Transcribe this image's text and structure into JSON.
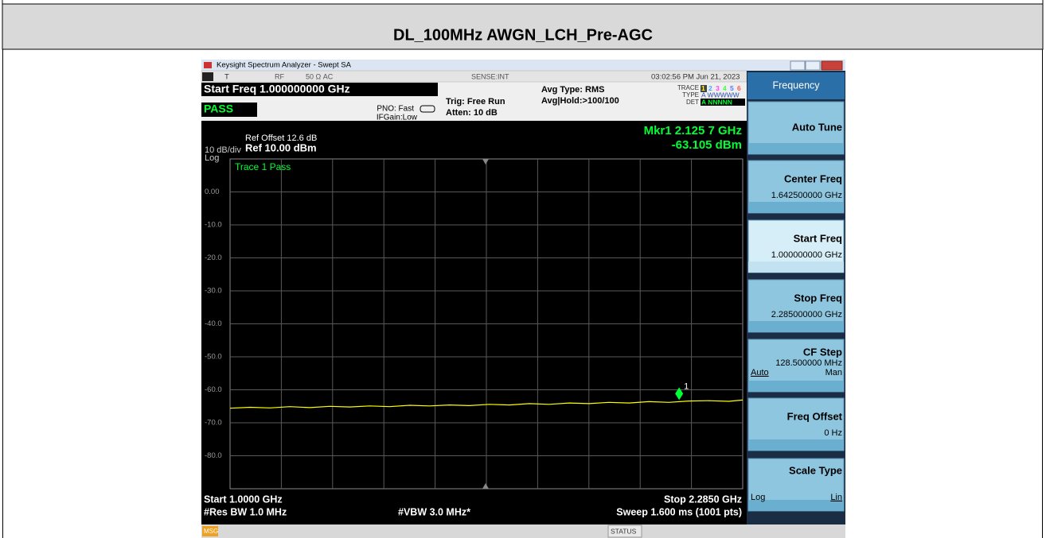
{
  "document": {
    "title": "DL_100MHz AWGN_LCH_Pre-AGC"
  },
  "window": {
    "title": "Keysight Spectrum Analyzer - Swept SA"
  },
  "status": {
    "trig_indicator": "T",
    "input": "RF",
    "impedance": "50 Ω  AC",
    "sense": "SENSE:INT",
    "datetime": "03:02:56 PM Jun 21, 2023"
  },
  "settings": {
    "start_freq": "Start Freq 1.000000000 GHz",
    "pass": "PASS",
    "pno": "PNO: Fast",
    "ifgain": "IFGain:Low",
    "trig": "Trig: Free Run",
    "atten": "Atten: 10 dB",
    "avg_type": "Avg Type: RMS",
    "avg_hold": "Avg|Hold:>100/100",
    "trace_label": "TRACE",
    "trace_digits": [
      "1",
      "2",
      "3",
      "4",
      "5",
      "6"
    ],
    "trace_colors": [
      "#ffff00",
      "#3fa9f5",
      "#ff44ff",
      "#44ff44",
      "#4f7cff",
      "#ff5555"
    ],
    "type_label": "TYPE",
    "type_value": "A WWWWW",
    "det_label": "DET",
    "det_value": "A NNNNN"
  },
  "display": {
    "ref_offset": "Ref Offset 12.6 dB",
    "scale": "10 dB/div",
    "ref_level": "Ref 10.00 dBm",
    "scale_type": "Log",
    "trace_status": "Trace 1 Pass",
    "start": "Start 1.0000 GHz",
    "stop": "Stop 2.2850 GHz",
    "rbw": "#Res BW 1.0 MHz",
    "vbw": "#VBW 3.0 MHz*",
    "sweep": "Sweep  1.600 ms (1001 pts)"
  },
  "chart_data": {
    "type": "line",
    "color": "#ffff00",
    "x": [
      1.0,
      1.05,
      1.1,
      1.15,
      1.2,
      1.25,
      1.3,
      1.35,
      1.4,
      1.45,
      1.5,
      1.55,
      1.6,
      1.65,
      1.7,
      1.75,
      1.8,
      1.85,
      1.9,
      1.95,
      2.0,
      2.05,
      2.1,
      2.15,
      2.2,
      2.25,
      2.285
    ],
    "values": [
      -65.6,
      -65.3,
      -65.5,
      -65.1,
      -65.4,
      -65.0,
      -65.2,
      -64.9,
      -65.1,
      -64.7,
      -64.9,
      -64.6,
      -64.8,
      -64.4,
      -64.6,
      -64.2,
      -64.4,
      -64.0,
      -64.2,
      -63.8,
      -64.0,
      -63.6,
      -63.8,
      -63.4,
      -63.3,
      -63.5,
      -63.1
    ],
    "xlim": [
      1.0,
      2.285
    ],
    "ylim": [
      -90,
      10
    ],
    "yticks": [
      {
        "value": 0,
        "label": "0.00"
      },
      {
        "value": -10,
        "label": "-10.0"
      },
      {
        "value": -20,
        "label": "-20.0"
      },
      {
        "value": -30,
        "label": "-30.0"
      },
      {
        "value": -40,
        "label": "-40.0"
      },
      {
        "value": -50,
        "label": "-50.0"
      },
      {
        "value": -60,
        "label": "-60.0"
      },
      {
        "value": -70,
        "label": "-70.0"
      },
      {
        "value": -80,
        "label": "-80.0"
      }
    ],
    "grid": true,
    "marker": {
      "x": 2.1257,
      "value": -63.105,
      "x_label": "Mkr1 2.125 7 GHz",
      "value_label": "-63.105 dBm",
      "label": "1",
      "color": "#00ff33"
    }
  },
  "softkeys": {
    "menu_title": "Frequency",
    "active_key": 2,
    "keys": [
      {
        "label": "Auto Tune"
      },
      {
        "label": "Center Freq",
        "value": "1.642500000 GHz"
      },
      {
        "label": "Start Freq",
        "value": "1.000000000 GHz"
      },
      {
        "label": "Stop Freq",
        "value": "2.285000000 GHz"
      },
      {
        "label": "CF Step",
        "value": "128.500000 MHz",
        "options": [
          "Auto",
          "Man"
        ],
        "selected_option": 0
      },
      {
        "label": "Freq Offset",
        "value": "0 Hz"
      },
      {
        "label": "Scale Type",
        "options": [
          "Log",
          "Lin"
        ],
        "selected_option": 1
      }
    ]
  },
  "status_bar": {
    "msg": "MSG",
    "status": "STATUS"
  }
}
